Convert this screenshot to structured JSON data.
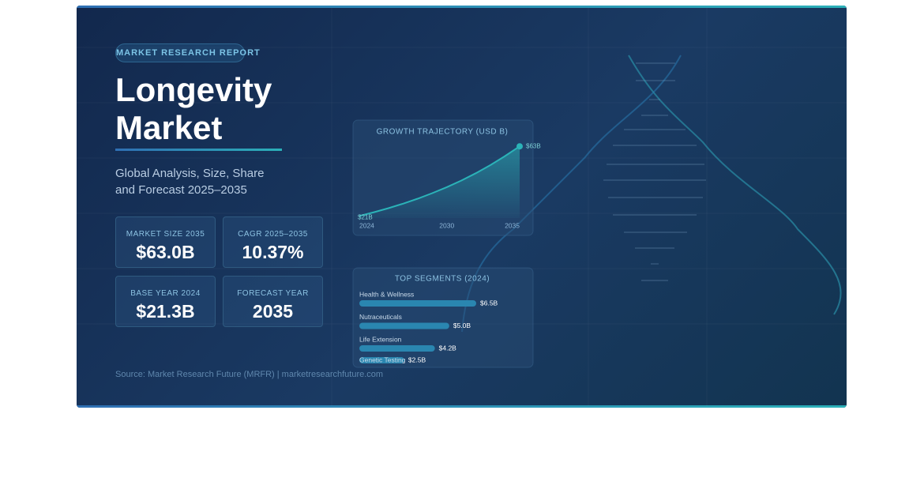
{
  "badge": "MARKET RESEARCH REPORT",
  "header": {
    "title": "Longevity Market",
    "subtitle": "Global Analysis, Size, Share and Forecast 2025–2035"
  },
  "stats": [
    {
      "label": "MARKET SIZE 2035",
      "value": "$63.0B"
    },
    {
      "label": "CAGR 2025–2035",
      "value": "10.37%"
    },
    {
      "label": "BASE YEAR 2024",
      "value": "$21.3B"
    },
    {
      "label": "FORECAST YEAR",
      "value": "2035"
    }
  ],
  "source": "Source: Market Research Future (MRFR) | marketresearchfuture.com",
  "chart_data": [
    {
      "type": "area",
      "title": "GROWTH TRAJECTORY (USD B)",
      "x": [
        2024,
        2025,
        2026,
        2027,
        2028,
        2029,
        2030,
        2031,
        2032,
        2033,
        2034,
        2035
      ],
      "values": [
        21.3,
        23.5,
        25.9,
        28.6,
        31.6,
        34.9,
        38.5,
        42.5,
        46.9,
        51.8,
        57.2,
        63.0
      ],
      "value_labels": [
        "$21B",
        null,
        null,
        null,
        null,
        null,
        null,
        null,
        null,
        null,
        null,
        "$63B"
      ],
      "xlim": [
        2024,
        2035
      ],
      "xticks": [
        2024,
        2030,
        2035
      ],
      "ylim": [
        20,
        65
      ],
      "color": "#2bb3b8"
    },
    {
      "type": "hbar",
      "title": "TOP SEGMENTS (2024)",
      "categories": [
        "Health & Wellness",
        "Nutraceuticals",
        "Life Extension",
        "Genetic Testing"
      ],
      "values": [
        6.5,
        5.0,
        4.2,
        2.5
      ],
      "value_labels": [
        "$6.5B",
        "$5.0B",
        "$4.2B",
        "$2.5B"
      ],
      "xlim": [
        0,
        6.5
      ],
      "color": "#2a86b0"
    }
  ]
}
